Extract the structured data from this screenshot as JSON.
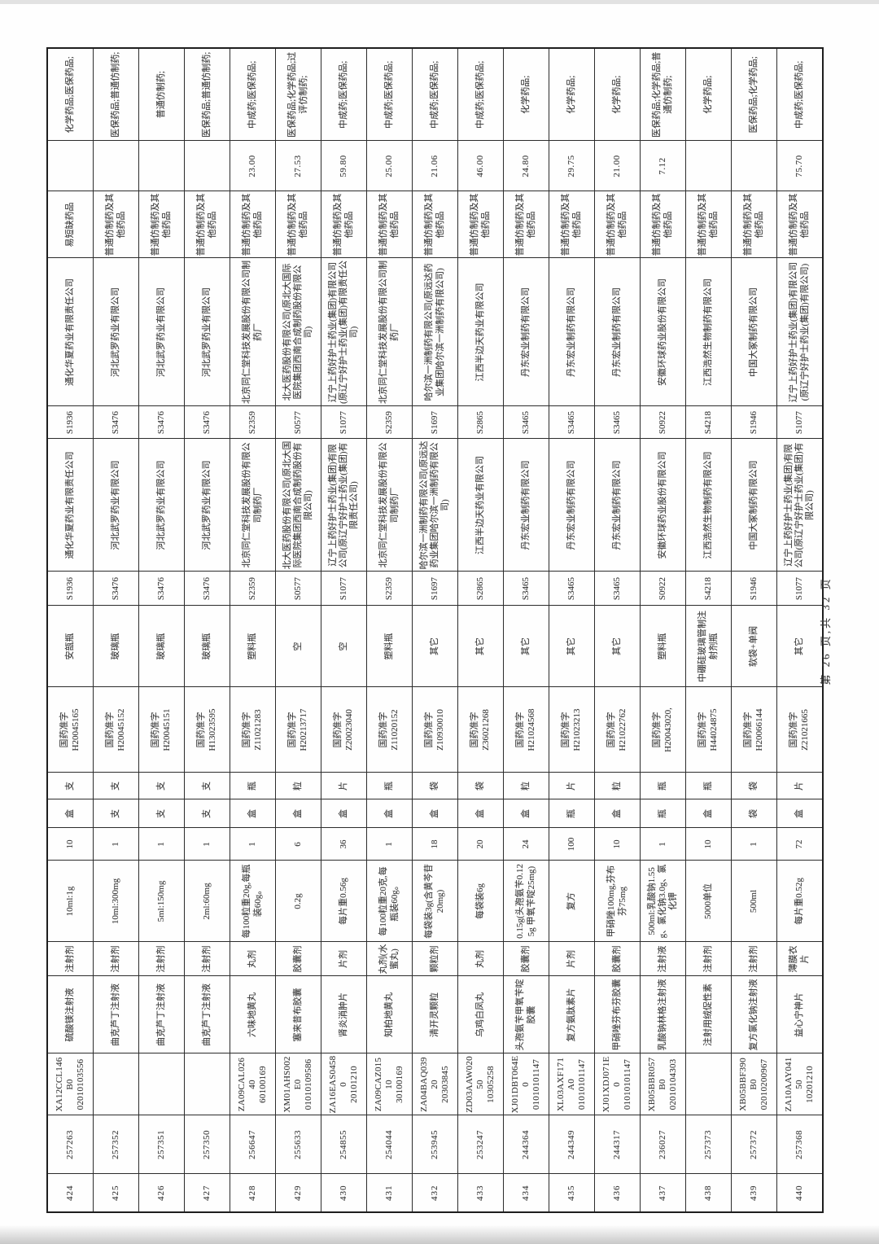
{
  "page": {
    "footer": "第 26 页,共 32 页"
  },
  "column_keys": [
    "no",
    "serial",
    "code",
    "name",
    "form",
    "spec",
    "qty",
    "unit_pack",
    "unit_dose",
    "approval",
    "pack",
    "code_mfr",
    "company_mfr",
    "code_mah",
    "company_mah",
    "shortage",
    "price",
    "category"
  ],
  "rows": [
    {
      "no": "424",
      "serial": "257263",
      "code": "XA12CCL146B0\n02010103556",
      "name": "硫酸镁注射液",
      "form": "注射剂",
      "spec": "10ml:1g",
      "qty": "10",
      "unit_pack": "盒",
      "unit_dose": "支",
      "approval": "国药准字\nH20045165",
      "pack": "安瓿瓶",
      "code_mfr": "S1936",
      "company_mfr": "通化华夏药业有限责任公司",
      "code_mah": "S1936",
      "company_mah": "通化华夏药业有限责任公司",
      "shortage": "易短缺药品",
      "price": "",
      "category": "化学药品;医保药品;"
    },
    {
      "no": "425",
      "serial": "257352",
      "code": "",
      "name": "曲克芦丁注射液",
      "form": "注射剂",
      "spec": "10ml:300mg",
      "qty": "1",
      "unit_pack": "支",
      "unit_dose": "支",
      "approval": "国药准字\nH20045152",
      "pack": "玻璃瓶",
      "code_mfr": "S3476",
      "company_mfr": "河北武罗药业有限公司",
      "code_mah": "S3476",
      "company_mah": "河北武罗药业有限公司",
      "shortage": "普通仿制药及其他药品",
      "price": "",
      "category": "医保药品;普通仿制药;"
    },
    {
      "no": "426",
      "serial": "257351",
      "code": "",
      "name": "曲克芦丁注射液",
      "form": "注射剂",
      "spec": "5ml:150mg",
      "qty": "1",
      "unit_pack": "支",
      "unit_dose": "支",
      "approval": "国药准字\nH20045151",
      "pack": "玻璃瓶",
      "code_mfr": "S3476",
      "company_mfr": "河北武罗药业有限公司",
      "code_mah": "S3476",
      "company_mah": "河北武罗药业有限公司",
      "shortage": "普通仿制药及其他药品",
      "price": "",
      "category": "普通仿制药;"
    },
    {
      "no": "427",
      "serial": "257350",
      "code": "",
      "name": "曲克芦丁注射液",
      "form": "注射剂",
      "spec": "2ml:60mg",
      "qty": "1",
      "unit_pack": "支",
      "unit_dose": "支",
      "approval": "国药准字\nH13023595",
      "pack": "玻璃瓶",
      "code_mfr": "S3476",
      "company_mfr": "河北武罗药业有限公司",
      "code_mah": "S3476",
      "company_mah": "河北武罗药业有限公司",
      "shortage": "普通仿制药及其他药品",
      "price": "",
      "category": "医保药品;普通仿制药;"
    },
    {
      "no": "428",
      "serial": "256647",
      "code": "ZA09CAL02640\n60100169",
      "name": "六味地黄丸",
      "form": "丸剂",
      "spec": "每100粒重20g,每瓶装60g。",
      "qty": "1",
      "unit_pack": "盒",
      "unit_dose": "瓶",
      "approval": "国药准字\nZ11021283",
      "pack": "塑料瓶",
      "code_mfr": "S2359",
      "company_mfr": "北京同仁堂科技发展股份有限公司制药厂",
      "code_mah": "S2359",
      "company_mah": "北京同仁堂科技发展股份有限公司制药厂",
      "shortage": "普通仿制药及其他药品",
      "price": "23.00",
      "category": "中成药;医保药品;"
    },
    {
      "no": "429",
      "serial": "255633",
      "code": "XM01AHS002E0\n01010109586",
      "name": "塞来昔布胶囊",
      "form": "胶囊剂",
      "spec": "0.2g",
      "qty": "6",
      "unit_pack": "盒",
      "unit_dose": "粒",
      "approval": "国药准字\nH20213717",
      "pack": "空",
      "code_mfr": "S0577",
      "company_mfr": "北大医药股份有限公司(原北大国际医院集团西南合成制药股份有限公司)",
      "code_mah": "S0577",
      "company_mah": "北大医药股份有限公司(原北大国际医院集团西南合成制药股份有限公司)",
      "shortage": "普通仿制药及其他药品",
      "price": "27.53",
      "category": "医保药品;化学药品;过评仿制药;"
    },
    {
      "no": "430",
      "serial": "254855",
      "code": "ZA16EAS04580\n20101210",
      "name": "肾炎消肿片",
      "form": "片剂",
      "spec": "每片重0.56g",
      "qty": "36",
      "unit_pack": "盒",
      "unit_dose": "片",
      "approval": "国药准字\nZ20023040",
      "pack": "空",
      "code_mfr": "S1077",
      "company_mfr": "辽宁上药好护士药业(集团)有限公司(原辽宁好护士药业(集团)有限责任公司)",
      "code_mah": "S1077",
      "company_mah": "辽宁上药好护士药业(集团)有限公司(原辽宁好护士药业(集团)有限责任公司)",
      "shortage": "普通仿制药及其他药品",
      "price": "59.80",
      "category": "中成药;医保药品;"
    },
    {
      "no": "431",
      "serial": "254044",
      "code": "ZA09CAZ01510\n30100169",
      "name": "知柏地黄丸",
      "form": "丸剂(水蜜丸)",
      "spec": "每100粒重20克,每瓶装60g。",
      "qty": "1",
      "unit_pack": "盒",
      "unit_dose": "瓶",
      "approval": "国药准字\nZ11020152",
      "pack": "塑料瓶",
      "code_mfr": "S2359",
      "company_mfr": "北京同仁堂科技发展股份有限公司制药厂",
      "code_mah": "S2359",
      "company_mah": "北京同仁堂科技发展股份有限公司制药厂",
      "shortage": "普通仿制药及其他药品",
      "price": "25.00",
      "category": "中成药;医保药品;"
    },
    {
      "no": "432",
      "serial": "253945",
      "code": "ZA04BAQ03920\n20303845",
      "name": "清开灵颗粒",
      "form": "颗粒剂",
      "spec": "每袋装3g(含黄芩苷20mg)",
      "qty": "18",
      "unit_pack": "盒",
      "unit_dose": "袋",
      "approval": "国药准字\nZ10930010",
      "pack": "其它",
      "code_mfr": "S1697",
      "company_mfr": "哈尔滨一洲制药有限公司(原远达药业集团哈尔滨一洲制药有限公司)",
      "code_mah": "S1697",
      "company_mah": "哈尔滨一洲制药有限公司(原远达药业集团哈尔滨一洲制药有限公司)",
      "shortage": "普通仿制药及其他药品",
      "price": "21.06",
      "category": "中成药;医保药品;"
    },
    {
      "no": "433",
      "serial": "253247",
      "code": "ZD03AAW02050\n10305258",
      "name": "乌鸡白凤丸",
      "form": "丸剂",
      "spec": "每袋装6g",
      "qty": "20",
      "unit_pack": "盒",
      "unit_dose": "袋",
      "approval": "国药准字\nZ36021268",
      "pack": "其它",
      "code_mfr": "S2865",
      "company_mfr": "江西半边天药业有限公司",
      "code_mah": "S2865",
      "company_mah": "江西半边天药业有限公司",
      "shortage": "普通仿制药及其他药品",
      "price": "46.00",
      "category": "中成药;医保药品;"
    },
    {
      "no": "434",
      "serial": "244364",
      "code": "XJ01DBT064E0\n01010101147",
      "name": "头孢氨苄甲氧苄啶胶囊",
      "form": "胶囊剂",
      "spec": "0.15g(头孢氨苄0.125g 甲氧苄啶25mg)",
      "qty": "24",
      "unit_pack": "盒",
      "unit_dose": "粒",
      "approval": "国药准字\nH21024568",
      "pack": "其它",
      "code_mfr": "S3465",
      "company_mfr": "丹东宏业制药有限公司",
      "code_mah": "S3465",
      "company_mah": "丹东宏业制药有限公司",
      "shortage": "普通仿制药及其他药品",
      "price": "24.80",
      "category": "化学药品;"
    },
    {
      "no": "435",
      "serial": "244349",
      "code": "XL03AXF171A0\n01010101147",
      "name": "复方氨肽素片",
      "form": "片剂",
      "spec": "复方",
      "qty": "100",
      "unit_pack": "瓶",
      "unit_dose": "片",
      "approval": "国药准字\nH21023213",
      "pack": "其它",
      "code_mfr": "S3465",
      "company_mfr": "丹东宏业制药有限公司",
      "code_mah": "S3465",
      "company_mah": "丹东宏业制药有限公司",
      "shortage": "普通仿制药及其他药品",
      "price": "29.75",
      "category": "化学药品;"
    },
    {
      "no": "436",
      "serial": "244317",
      "code": "XJ01XDJ071E0\n01010101147",
      "name": "甲硝唑芬布芬胶囊",
      "form": "胶囊剂",
      "spec": "甲硝唑100mg,芬布芬75mg",
      "qty": "10",
      "unit_pack": "盒",
      "unit_dose": "粒",
      "approval": "国药准字\nH21022762",
      "pack": "其它",
      "code_mfr": "S3465",
      "company_mfr": "丹东宏业制药有限公司",
      "code_mah": "S3465",
      "company_mah": "丹东宏业制药有限公司",
      "shortage": "普通仿制药及其他药品",
      "price": "21.00",
      "category": "化学药品;"
    },
    {
      "no": "437",
      "serial": "236027",
      "code": "XB05BBR057B0\n02010104303",
      "name": "乳酸钠林格注射液",
      "form": "注射液",
      "spec": "500ml:乳酸钠1.55g、氯化钠3.0g、氯化钾",
      "qty": "1",
      "unit_pack": "瓶",
      "unit_dose": "瓶",
      "approval": "国药准字\nH20043020,",
      "pack": "塑料瓶",
      "code_mfr": "S0922",
      "company_mfr": "安徽环球药业股份有限公司",
      "code_mah": "S0922",
      "company_mah": "安徽环球药业股份有限公司",
      "shortage": "普通仿制药及其他药品",
      "price": "7.12",
      "category": "医保药品;化学药品;普通仿制药;"
    },
    {
      "no": "438",
      "serial": "257373",
      "code": "",
      "name": "注射用绒促性素",
      "form": "注射剂",
      "spec": "5000单位",
      "qty": "10",
      "unit_pack": "盒",
      "unit_dose": "瓶",
      "approval": "国药准字\nH44024875",
      "pack": "中硼硅玻璃管制注射剂瓶",
      "code_mfr": "S4218",
      "company_mfr": "江西浩然生物制药有限公司",
      "code_mah": "S4218",
      "company_mah": "江西浩然生物制药有限公司",
      "shortage": "普通仿制药及其他药品",
      "price": "",
      "category": "化学药品;"
    },
    {
      "no": "439",
      "serial": "257372",
      "code": "XB05BBF390B0\n02010200967",
      "name": "复方氯化钠注射液",
      "form": "注射剂",
      "spec": "500ml",
      "qty": "1",
      "unit_pack": "袋",
      "unit_dose": "袋",
      "approval": "国药准字\nH20066144",
      "pack": "软袋+单阀",
      "code_mfr": "S1946",
      "company_mfr": "中国大冢制药有限公司",
      "code_mah": "S1946",
      "company_mah": "中国大冢制药有限公司",
      "shortage": "普通仿制药及其他药品",
      "price": "",
      "category": "医保药品;化学药品;"
    },
    {
      "no": "440",
      "serial": "257368",
      "code": "ZA10AAY04150\n10201210",
      "name": "益心宁神片",
      "form": "薄膜衣片",
      "spec": "每片重0.52g",
      "qty": "72",
      "unit_pack": "盒",
      "unit_dose": "片",
      "approval": "国药准字\nZ21021665",
      "pack": "其它",
      "code_mfr": "S1077",
      "company_mfr": "辽宁上药好护士药业(集团)有限公司(原辽宁好护士药业(集团)有限公司)",
      "code_mah": "S1077",
      "company_mah": "辽宁上药好护士药业(集团)有限公司(原辽宁好护士药业(集团)有限公司)",
      "shortage": "普通仿制药及其他药品",
      "price": "75.70",
      "category": "中成药;医保药品;"
    }
  ]
}
